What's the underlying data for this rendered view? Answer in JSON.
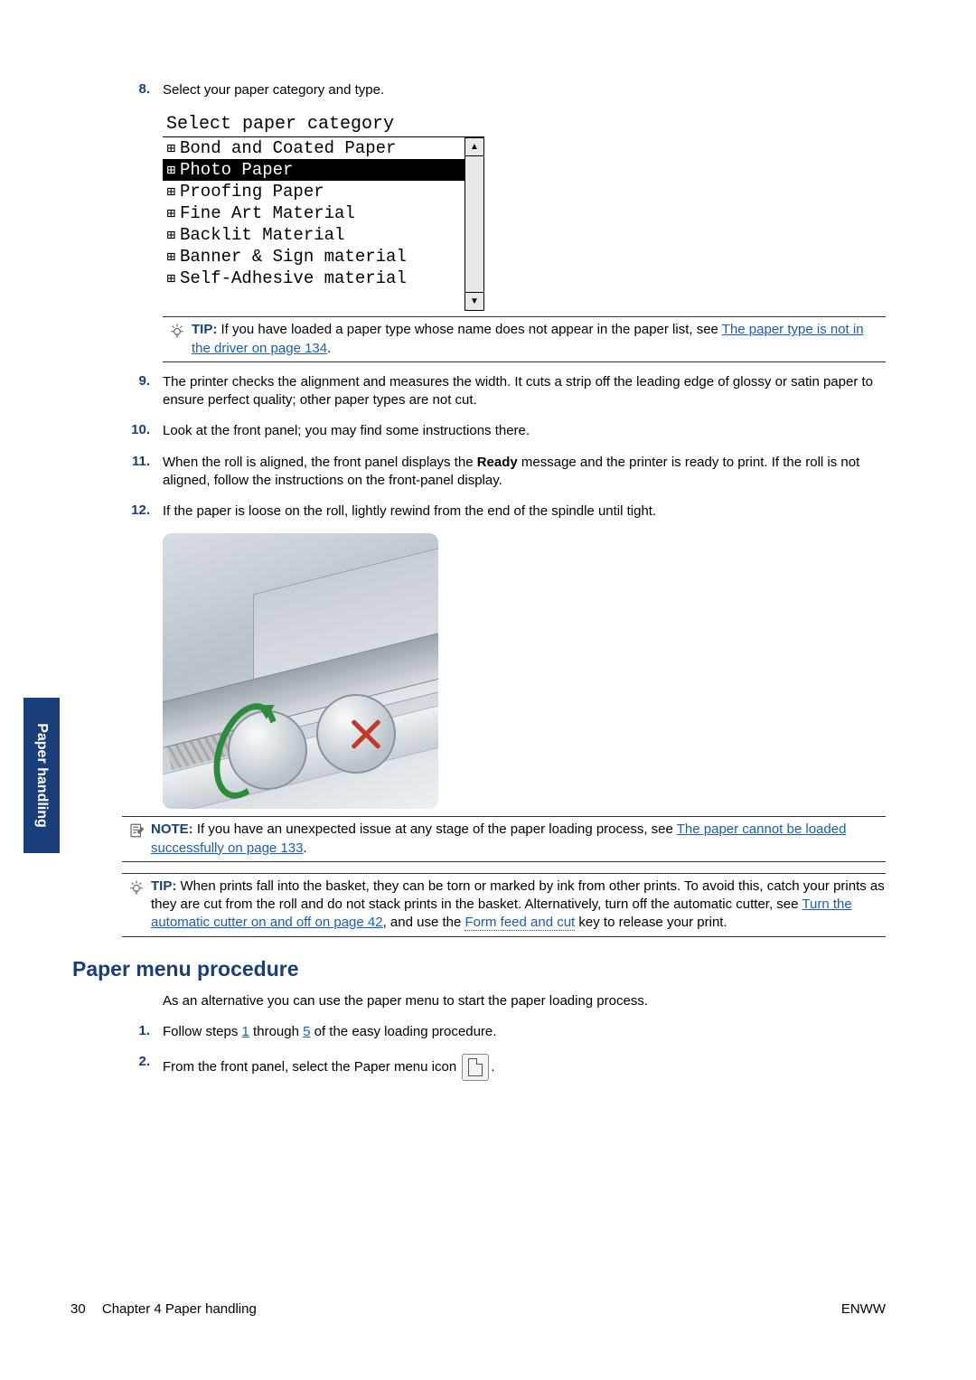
{
  "side_tab": "Paper handling",
  "steps_a": [
    {
      "num": "8.",
      "text": "Select your paper category and type."
    }
  ],
  "lcd": {
    "title": "Select paper category",
    "items": [
      "Bond and Coated Paper",
      "Photo Paper",
      "Proofing Paper",
      "Fine Art Material",
      "Backlit Material",
      "Banner & Sign material",
      "Self-Adhesive material"
    ],
    "selected_index": 1
  },
  "tip1": {
    "label": "TIP:",
    "pre": "If you have loaded a paper type whose name does not appear in the paper list, see ",
    "link": "The paper type is not in the driver on page 134",
    "post": "."
  },
  "steps_b": [
    {
      "num": "9.",
      "text": "The printer checks the alignment and measures the width. It cuts a strip off the leading edge of glossy or satin paper to ensure perfect quality; other paper types are not cut."
    },
    {
      "num": "10.",
      "text": "Look at the front panel; you may find some instructions there."
    },
    {
      "num": "11.",
      "pre": "When the roll is aligned, the front panel displays the ",
      "bold": "Ready",
      "post": " message and the printer is ready to print. If the roll is not aligned, follow the instructions on the front-panel display."
    },
    {
      "num": "12.",
      "text": "If the paper is loose on the roll, lightly rewind from the end of the spindle until tight."
    }
  ],
  "note1": {
    "label": "NOTE:",
    "pre": "If you have an unexpected issue at any stage of the paper loading process, see ",
    "link": "The paper cannot be loaded successfully on page 133",
    "post": "."
  },
  "tip2": {
    "label": "TIP:",
    "pre": "When prints fall into the basket, they can be torn or marked by ink from other prints. To avoid this, catch your prints as they are cut from the roll and do not stack prints in the basket. Alternatively, turn off the automatic cutter, see ",
    "link1": "Turn the automatic cutter on and off on page 42",
    "mid": ", and use the ",
    "link2": "Form feed and cut",
    "post": " key to release your print."
  },
  "section_heading": "Paper menu procedure",
  "section_para": "As an alternative you can use the paper menu to start the paper loading process.",
  "steps_c": [
    {
      "num": "1.",
      "pre": "Follow steps ",
      "l1": "1",
      "mid": " through ",
      "l2": "5",
      "post": " of the easy loading procedure."
    },
    {
      "num": "2.",
      "text": "From the front panel, select the Paper menu icon "
    }
  ],
  "footer": {
    "page": "30",
    "chapter": "Chapter 4   Paper handling",
    "right": "ENWW"
  },
  "colors": {
    "accent": "#1a3e7a",
    "link": "#1a5db5",
    "red": "#c0392b",
    "green": "#2e8b3d"
  }
}
